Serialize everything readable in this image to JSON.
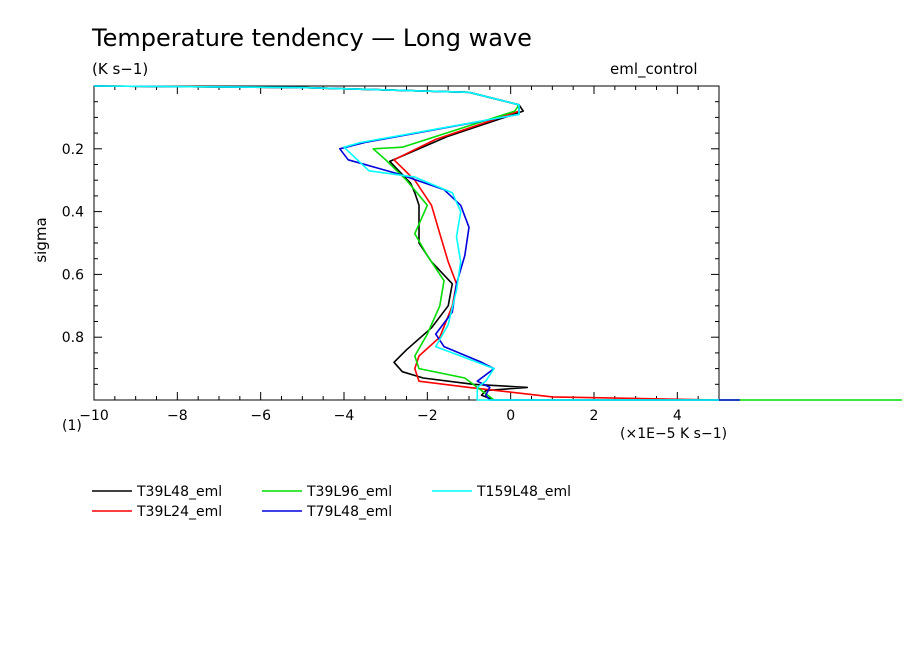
{
  "chart_data": {
    "type": "line",
    "title": "Temperature tendency — Long wave",
    "units": "(K s−1)",
    "experiment": "eml_control",
    "ylabel": "sigma",
    "xlabel": "(×1E−5 K s−1)",
    "corner_label": "(1)",
    "xlim": [
      -10,
      5
    ],
    "ylim": [
      1.0,
      0.0
    ],
    "x_ticks": [
      -10,
      -8,
      -6,
      -4,
      -2,
      0,
      2,
      4
    ],
    "x_tick_labels": [
      "−10",
      "−8",
      "−6",
      "−4",
      "−2",
      "0",
      "2",
      "4"
    ],
    "y_ticks": [
      0.2,
      0.4,
      0.6,
      0.8
    ],
    "y_tick_labels": [
      "0.2",
      "0.4",
      "0.6",
      "0.8"
    ],
    "series": [
      {
        "name": "T39L48_eml",
        "color": "#000000",
        "points": [
          [
            -10,
            0.0
          ],
          [
            -5,
            0.005
          ],
          [
            -1,
            0.02
          ],
          [
            0.2,
            0.06
          ],
          [
            0.3,
            0.08
          ],
          [
            -1.5,
            0.16
          ],
          [
            -2.9,
            0.24
          ],
          [
            -2.4,
            0.31
          ],
          [
            -2.3,
            0.34
          ],
          [
            -2.2,
            0.38
          ],
          [
            -2.2,
            0.44
          ],
          [
            -2.2,
            0.5
          ],
          [
            -1.9,
            0.56
          ],
          [
            -1.4,
            0.63
          ],
          [
            -1.5,
            0.7
          ],
          [
            -1.9,
            0.77
          ],
          [
            -2.5,
            0.84
          ],
          [
            -2.8,
            0.88
          ],
          [
            -2.6,
            0.91
          ],
          [
            -2.1,
            0.93
          ],
          [
            -0.9,
            0.95
          ],
          [
            0.4,
            0.96
          ],
          [
            -0.6,
            0.97
          ],
          [
            -0.7,
            0.985
          ],
          [
            -0.4,
            1.0
          ]
        ]
      },
      {
        "name": "T39L24_eml",
        "color": "#ff0000",
        "points": [
          [
            -10,
            0.0
          ],
          [
            -5,
            0.005
          ],
          [
            -1,
            0.02
          ],
          [
            0.2,
            0.06
          ],
          [
            0.2,
            0.08
          ],
          [
            -1.8,
            0.17
          ],
          [
            -2.8,
            0.235
          ],
          [
            -2.3,
            0.3
          ],
          [
            -1.9,
            0.38
          ],
          [
            -1.7,
            0.47
          ],
          [
            -1.5,
            0.56
          ],
          [
            -1.3,
            0.63
          ],
          [
            -1.4,
            0.7
          ],
          [
            -1.7,
            0.8
          ],
          [
            -2.2,
            0.86
          ],
          [
            -2.3,
            0.9
          ],
          [
            -2.2,
            0.94
          ],
          [
            -1.0,
            0.96
          ],
          [
            1.0,
            0.99
          ],
          [
            5.0,
            1.0
          ]
        ]
      },
      {
        "name": "T39L96_eml",
        "color": "#00dd00",
        "points": [
          [
            -10,
            0.0
          ],
          [
            -5,
            0.005
          ],
          [
            -1,
            0.02
          ],
          [
            0.2,
            0.06
          ],
          [
            0.1,
            0.08
          ],
          [
            -2.6,
            0.195
          ],
          [
            -3.3,
            0.2
          ],
          [
            -3.0,
            0.235
          ],
          [
            -2.5,
            0.3
          ],
          [
            -2.0,
            0.38
          ],
          [
            -2.2,
            0.44
          ],
          [
            -2.3,
            0.47
          ],
          [
            -2.0,
            0.54
          ],
          [
            -1.6,
            0.62
          ],
          [
            -1.7,
            0.7
          ],
          [
            -2.0,
            0.79
          ],
          [
            -2.3,
            0.86
          ],
          [
            -2.2,
            0.9
          ],
          [
            -1.1,
            0.93
          ],
          [
            -0.8,
            0.96
          ],
          [
            -0.6,
            0.98
          ],
          [
            -0.4,
            1.0
          ],
          [
            10.0,
            1.0
          ]
        ]
      },
      {
        "name": "T79L48_eml",
        "color": "#0000dd",
        "points": [
          [
            -10,
            0.0
          ],
          [
            -5,
            0.005
          ],
          [
            -1,
            0.02
          ],
          [
            0.2,
            0.06
          ],
          [
            0.2,
            0.09
          ],
          [
            -3.5,
            0.18
          ],
          [
            -4.1,
            0.2
          ],
          [
            -3.9,
            0.235
          ],
          [
            -2.7,
            0.28
          ],
          [
            -1.6,
            0.33
          ],
          [
            -1.2,
            0.38
          ],
          [
            -1.0,
            0.45
          ],
          [
            -1.1,
            0.54
          ],
          [
            -1.3,
            0.63
          ],
          [
            -1.4,
            0.72
          ],
          [
            -1.8,
            0.79
          ],
          [
            -1.6,
            0.83
          ],
          [
            -0.7,
            0.88
          ],
          [
            -0.4,
            0.9
          ],
          [
            -0.8,
            0.94
          ],
          [
            -0.5,
            0.96
          ],
          [
            -0.6,
            0.985
          ],
          [
            -0.5,
            1.0
          ],
          [
            5.5,
            1.0
          ]
        ]
      },
      {
        "name": "T159L48_eml",
        "color": "#00ffff",
        "points": [
          [
            -10,
            0.0
          ],
          [
            -5,
            0.005
          ],
          [
            -1,
            0.02
          ],
          [
            0.2,
            0.06
          ],
          [
            0.2,
            0.09
          ],
          [
            -3.6,
            0.18
          ],
          [
            -4.0,
            0.195
          ],
          [
            -3.4,
            0.27
          ],
          [
            -2.3,
            0.29
          ],
          [
            -1.4,
            0.34
          ],
          [
            -1.2,
            0.4
          ],
          [
            -1.3,
            0.48
          ],
          [
            -1.2,
            0.56
          ],
          [
            -1.3,
            0.65
          ],
          [
            -1.5,
            0.76
          ],
          [
            -1.8,
            0.83
          ],
          [
            -1.2,
            0.86
          ],
          [
            -0.4,
            0.9
          ],
          [
            -0.6,
            0.94
          ],
          [
            -0.8,
            0.96
          ],
          [
            -0.8,
            0.985
          ],
          [
            -0.8,
            1.0
          ],
          [
            5.0,
            1.0
          ]
        ]
      }
    ],
    "legend_position": "bottom"
  }
}
